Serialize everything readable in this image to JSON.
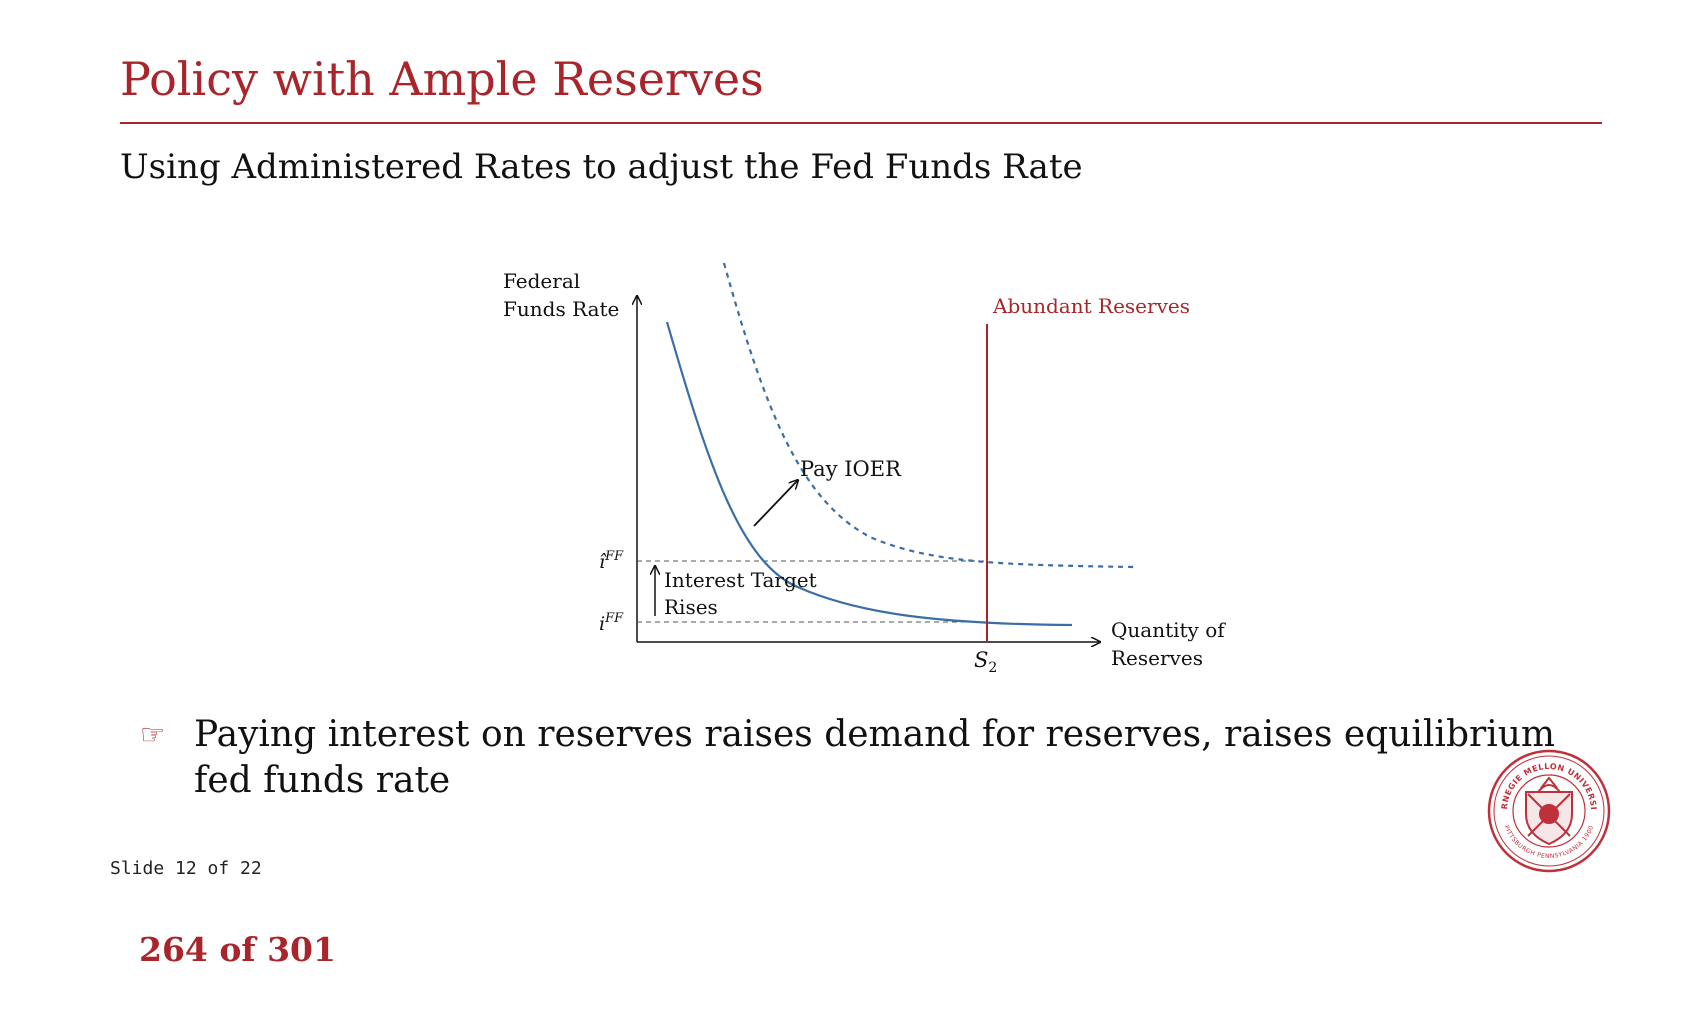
{
  "slide": {
    "title": "Policy with Ample Reserves",
    "subtitle": "Using Administered Rates to adjust the Fed Funds Rate",
    "slide_number": "Slide 12 of 22",
    "page_counter": "264 of 301"
  },
  "diagram": {
    "y_axis_label": [
      "Federal",
      "Funds Rate"
    ],
    "x_axis_label": [
      "Quantity of",
      "Reserves"
    ],
    "supply_label": "Abundant Reserves",
    "supply_tick": "S",
    "supply_tick_sub": "2",
    "rate_high": {
      "base": "î",
      "sup": "FF"
    },
    "rate_low": {
      "base": "i",
      "sup": "FF"
    },
    "shift_label": "Pay IOER",
    "target_label": [
      "Interest Target",
      "Rises"
    ]
  },
  "bullet": {
    "icon": "pointing-hand-icon",
    "text": "Paying interest on reserves raises demand for reserves, raises equilibrium fed funds rate"
  },
  "logo": {
    "name": "carnegie-mellon-seal",
    "top_text": "CARNEGIE MELLON UNIVERSITY",
    "bottom_text": "PITTSBURGH PENNSYLVANIA 1900"
  },
  "colors": {
    "accent": "#a8262b",
    "demand_curve": "#3a6ea5",
    "text": "#111111"
  }
}
